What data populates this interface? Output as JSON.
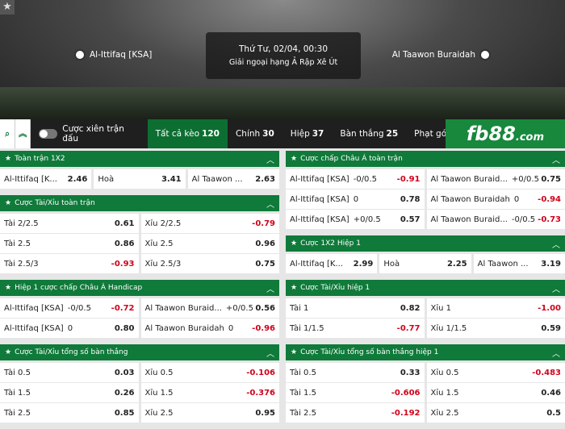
{
  "header": {
    "home": "Al-Ittifaq [KSA]",
    "away": "Al Taawon Buraidah",
    "time": "Thứ Tư, 02/04, 00:30",
    "league": "Giải ngoại hạng Ả Rập Xê Út"
  },
  "toolbar": {
    "parlay": "Cược xiên trận đấu",
    "tabs": [
      {
        "label": "Tất cả kèo",
        "count": "120"
      },
      {
        "label": "Chính",
        "count": "30"
      },
      {
        "label": "Hiệp",
        "count": "37"
      },
      {
        "label": "Bàn thắng",
        "count": "25"
      },
      {
        "label": "Phạt góc"
      }
    ],
    "logo": "fb88",
    "logo_suffix": ".com"
  },
  "columns": [
    [
      {
        "title": "Toàn trận 1X2",
        "rows": [
          [
            {
              "label": "Al-Ittifaq [K...",
              "odds": "2.46"
            },
            {
              "label": "Hoà",
              "odds": "3.41"
            },
            {
              "label": "Al Taawon ...",
              "odds": "2.63"
            }
          ]
        ]
      },
      {
        "title": "Cược Tài/Xỉu toàn trận",
        "rows": [
          [
            {
              "label": "Tài 2/2.5",
              "odds": "0.61"
            },
            {
              "label": "Xỉu 2/2.5",
              "odds": "-0.79"
            }
          ],
          [
            {
              "label": "Tài 2.5",
              "odds": "0.86"
            },
            {
              "label": "Xỉu 2.5",
              "odds": "0.96"
            }
          ],
          [
            {
              "label": "Tài 2.5/3",
              "odds": "-0.93"
            },
            {
              "label": "Xỉu 2.5/3",
              "odds": "0.75"
            }
          ]
        ]
      },
      {
        "title": "Hiệp 1 cược chấp Châu Á Handicap",
        "rows": [
          [
            {
              "label": "Al-Ittifaq [KSA]",
              "line": "-0/0.5",
              "odds": "-0.72"
            },
            {
              "label": "Al Taawon Buraid...",
              "line": "+0/0.5",
              "odds": "0.56"
            }
          ],
          [
            {
              "label": "Al-Ittifaq [KSA]",
              "line": "0",
              "odds": "0.80"
            },
            {
              "label": "Al Taawon Buraidah",
              "line": "0",
              "odds": "-0.96"
            }
          ]
        ]
      },
      {
        "title": "Cược Tài/Xỉu tổng số bàn thắng",
        "rows": [
          [
            {
              "label": "Tài 0.5",
              "odds": "0.03"
            },
            {
              "label": "Xỉu 0.5",
              "odds": "-0.106"
            }
          ],
          [
            {
              "label": "Tài 1.5",
              "odds": "0.26"
            },
            {
              "label": "Xỉu 1.5",
              "odds": "-0.376"
            }
          ],
          [
            {
              "label": "Tài 2.5",
              "odds": "0.85"
            },
            {
              "label": "Xỉu 2.5",
              "odds": "0.95"
            }
          ]
        ]
      }
    ],
    [
      {
        "title": "Cược chấp Châu Á toàn trận",
        "rows": [
          [
            {
              "label": "Al-Ittifaq [KSA]",
              "line": "-0/0.5",
              "odds": "-0.91"
            },
            {
              "label": "Al Taawon Buraid...",
              "line": "+0/0.5",
              "odds": "0.75"
            }
          ],
          [
            {
              "label": "Al-Ittifaq [KSA]",
              "line": "0",
              "odds": "0.78"
            },
            {
              "label": "Al Taawon Buraidah",
              "line": "0",
              "odds": "-0.94"
            }
          ],
          [
            {
              "label": "Al-Ittifaq [KSA]",
              "line": "+0/0.5",
              "odds": "0.57"
            },
            {
              "label": "Al Taawon Buraid...",
              "line": "-0/0.5",
              "odds": "-0.73"
            }
          ]
        ]
      },
      {
        "title": "Cược 1X2 Hiệp 1",
        "rows": [
          [
            {
              "label": "Al-Ittifaq [K...",
              "odds": "2.99"
            },
            {
              "label": "Hoà",
              "odds": "2.25"
            },
            {
              "label": "Al Taawon ...",
              "odds": "3.19"
            }
          ]
        ]
      },
      {
        "title": "Cược Tài/Xỉu hiệp 1",
        "rows": [
          [
            {
              "label": "Tài 1",
              "odds": "0.82"
            },
            {
              "label": "Xỉu 1",
              "odds": "-1.00"
            }
          ],
          [
            {
              "label": "Tài 1/1.5",
              "odds": "-0.77"
            },
            {
              "label": "Xỉu 1/1.5",
              "odds": "0.59"
            }
          ]
        ]
      },
      {
        "title": "Cược Tài/Xỉu tổng số bàn thắng hiệp 1",
        "rows": [
          [
            {
              "label": "Tài 0.5",
              "odds": "0.33"
            },
            {
              "label": "Xỉu 0.5",
              "odds": "-0.483"
            }
          ],
          [
            {
              "label": "Tài 1.5",
              "odds": "-0.606"
            },
            {
              "label": "Xỉu 1.5",
              "odds": "0.46"
            }
          ],
          [
            {
              "label": "Tài 2.5",
              "odds": "-0.192"
            },
            {
              "label": "Xỉu 2.5",
              "odds": "0.5"
            }
          ]
        ]
      }
    ]
  ]
}
